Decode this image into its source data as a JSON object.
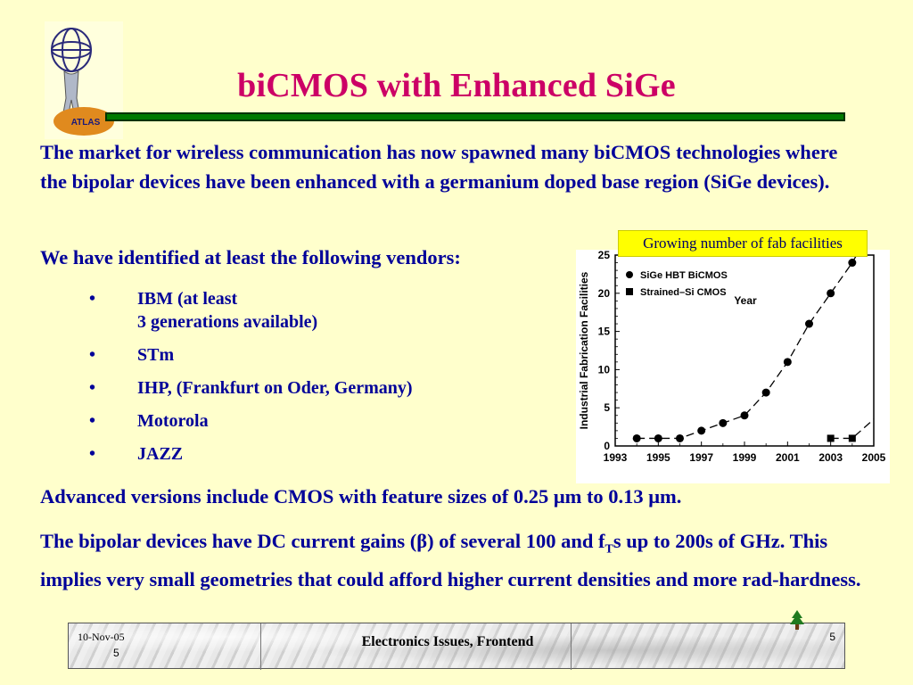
{
  "slide": {
    "logo_text": "ATLAS",
    "title": "biCMOS with Enhanced SiGe",
    "para1": "The market for wireless communication has now spawned many biCMOS technologies where the bipolar devices have been enhanced with a germanium doped base region (SiGe devices).",
    "para2": "We have identified at least the following vendors:",
    "vendors": [
      {
        "line1": "IBM (at least",
        "line2": "3 generations available)"
      },
      {
        "line1": "STm",
        "line2": ""
      },
      {
        "line1": "IHP, (Frankfurt on Oder, Germany)",
        "line2": ""
      },
      {
        "line1": "Motorola",
        "line2": ""
      },
      {
        "line1": "JAZZ",
        "line2": ""
      }
    ],
    "para3": "Advanced versions include CMOS with feature sizes of 0.25 μm to 0.13 μm.",
    "para4_a": "The bipolar devices have DC current gains (β) of several 100 and f",
    "para4_sub": "T",
    "para4_b": "s up to 200s of GHz.  This implies very small geometries that could afford higher current densities and more rad-hardness.",
    "chart_caption": "Growing number of fab facilities"
  },
  "footer": {
    "date": "10-Nov-05",
    "page_left": "5",
    "center": "Electronics Issues, Frontend",
    "page_right": "5"
  },
  "colors": {
    "background": "#ffffcc",
    "title": "#cc0066",
    "body_text": "#000099",
    "rule": "#007a00",
    "caption_bg": "#ffff00"
  },
  "chart_data": {
    "type": "scatter",
    "xlabel": "Year",
    "ylabel": "Industrial Fabrication Facilities",
    "xlim": [
      1993,
      2005
    ],
    "ylim": [
      0,
      25
    ],
    "x_ticks": [
      "1993",
      "1995",
      "1997",
      "1999",
      "2001",
      "2003",
      "2005"
    ],
    "y_ticks": [
      "0",
      "5",
      "10",
      "15",
      "20",
      "25"
    ],
    "legend_position": "top-left",
    "series": [
      {
        "name": "SiGe HBT BiCMOS",
        "marker": "circle",
        "line": "dashed",
        "points": [
          [
            1994,
            1
          ],
          [
            1995,
            1
          ],
          [
            1996,
            1
          ],
          [
            1997,
            2
          ],
          [
            1998,
            3
          ],
          [
            1999,
            4
          ],
          [
            2000,
            7
          ],
          [
            2001,
            11
          ],
          [
            2002,
            16
          ],
          [
            2003,
            20
          ],
          [
            2004,
            24
          ]
        ]
      },
      {
        "name": "Strained–Si CMOS",
        "marker": "square",
        "line": "dashed",
        "points": [
          [
            2003,
            1
          ],
          [
            2004,
            1
          ]
        ],
        "trend_to": [
          2005,
          3.5
        ]
      }
    ]
  }
}
